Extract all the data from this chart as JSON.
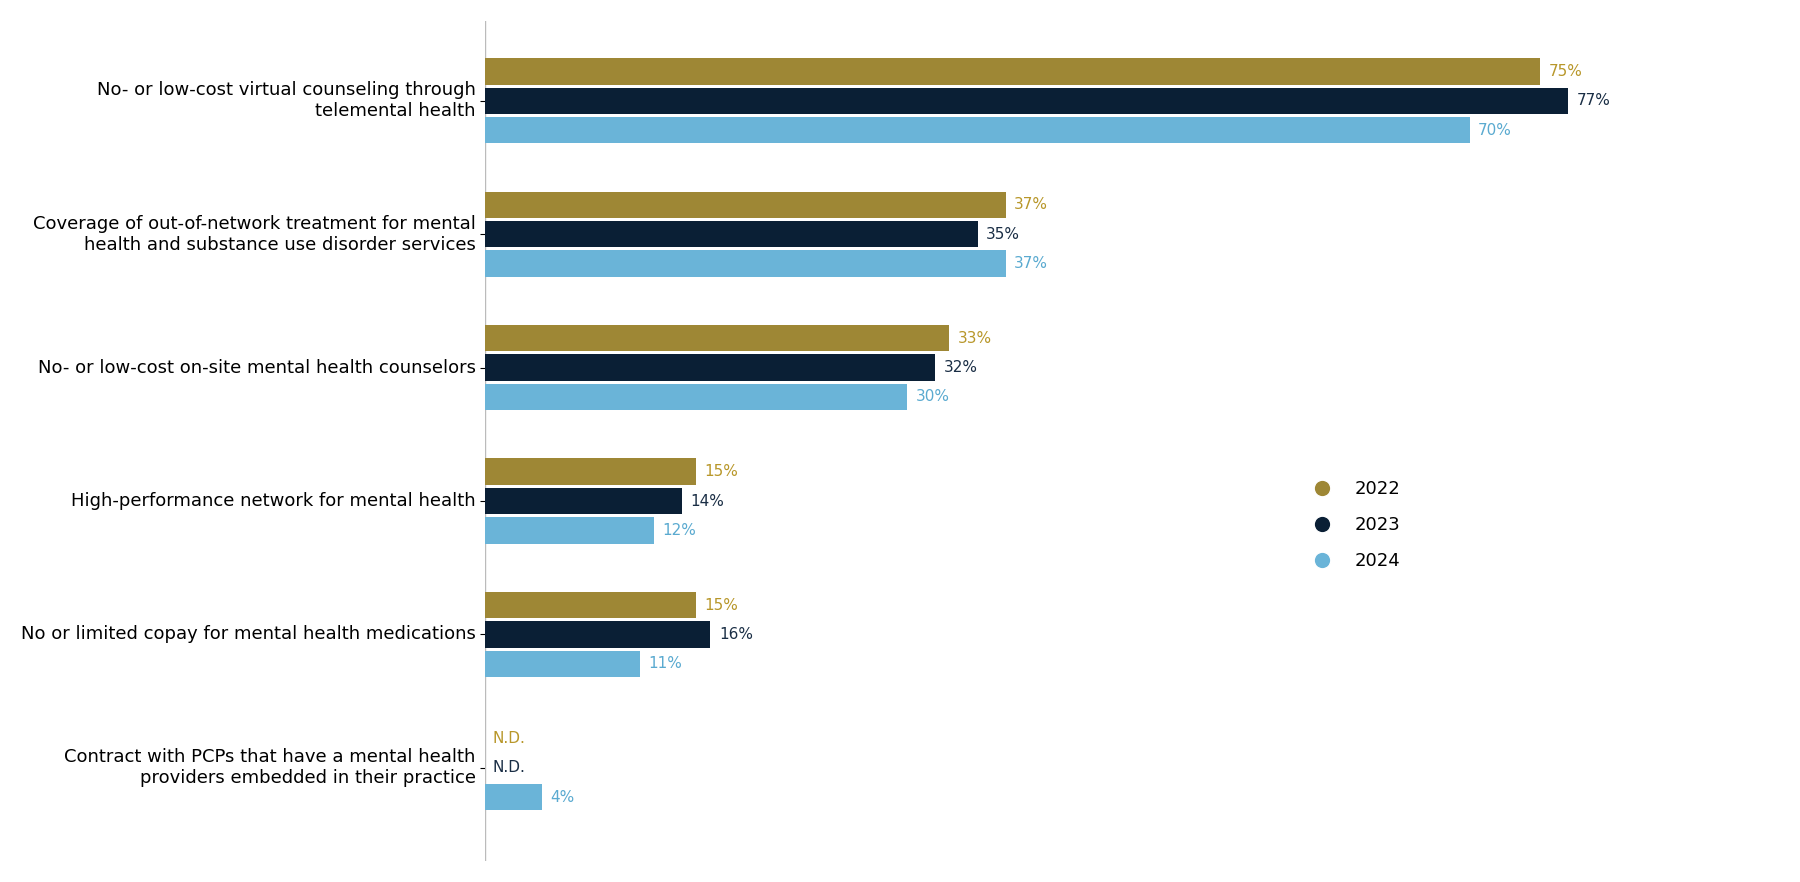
{
  "categories": [
    "No- or low-cost virtual counseling through\ntelemental health",
    "Coverage of out-of-network treatment for mental\nhealth and substance use disorder services",
    "No- or low-cost on-site mental health counselors",
    "High-performance network for mental health",
    "No or limited copay for mental health medications",
    "Contract with PCPs that have a mental health\nproviders embedded in their practice"
  ],
  "series": {
    "2022": [
      75,
      37,
      33,
      15,
      15,
      null
    ],
    "2023": [
      77,
      35,
      32,
      14,
      16,
      null
    ],
    "2024": [
      70,
      37,
      30,
      12,
      11,
      4
    ]
  },
  "labels": {
    "2022": [
      "75%",
      "37%",
      "33%",
      "15%",
      "15%",
      "N.D."
    ],
    "2023": [
      "77%",
      "35%",
      "32%",
      "14%",
      "16%",
      "N.D."
    ],
    "2024": [
      "70%",
      "37%",
      "30%",
      "12%",
      "11%",
      "4%"
    ]
  },
  "colors": {
    "2022": "#9e8735",
    "2023": "#0a1f35",
    "2024": "#6ab4d8"
  },
  "label_text_colors": {
    "2022": "#b8972a",
    "2023": "#1a2e45",
    "2024": "#5aaad0"
  },
  "bar_height": 0.22,
  "xlim": [
    0,
    92
  ],
  "background_color": "#ffffff",
  "label_fontsize": 11,
  "category_fontsize": 13,
  "legend_fontsize": 13
}
